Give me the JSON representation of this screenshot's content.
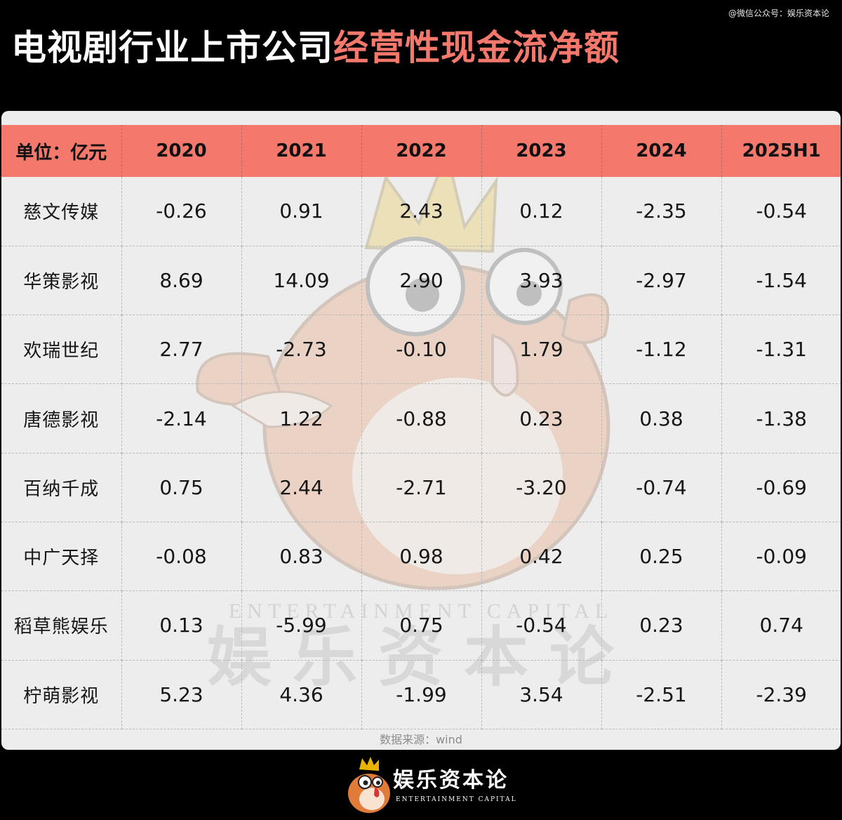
{
  "header": {
    "credit": "@微信公众号：娱乐资本论",
    "title_white": "电视剧行业上市公司",
    "title_red": "经营性现金流净额"
  },
  "chart_data": {
    "type": "table",
    "unit_label": "单位：亿元",
    "columns": [
      "2020",
      "2021",
      "2022",
      "2023",
      "2024",
      "2025H1"
    ],
    "rows": [
      {
        "name": "慈文传媒",
        "values": [
          "-0.26",
          "0.91",
          "2.43",
          "0.12",
          "-2.35",
          "-0.54"
        ]
      },
      {
        "name": "华策影视",
        "values": [
          "8.69",
          "14.09",
          "2.90",
          "3.93",
          "-2.97",
          "-1.54"
        ]
      },
      {
        "name": "欢瑞世纪",
        "values": [
          "2.77",
          "-2.73",
          "-0.10",
          "1.79",
          "-1.12",
          "-1.31"
        ]
      },
      {
        "name": "唐德影视",
        "values": [
          "-2.14",
          "1.22",
          "-0.88",
          "0.23",
          "0.38",
          "-1.38"
        ]
      },
      {
        "name": "百纳千成",
        "values": [
          "0.75",
          "2.44",
          "-2.71",
          "-3.20",
          "-0.74",
          "-0.69"
        ]
      },
      {
        "name": "中广天择",
        "values": [
          "-0.08",
          "0.83",
          "0.98",
          "0.42",
          "0.25",
          "-0.09"
        ]
      },
      {
        "name": "稻草熊娱乐",
        "values": [
          "0.13",
          "-5.99",
          "0.75",
          "-0.54",
          "0.23",
          "0.74"
        ]
      },
      {
        "name": "柠萌影视",
        "values": [
          "5.23",
          "4.36",
          "-1.99",
          "3.54",
          "-2.51",
          "-2.39"
        ]
      }
    ],
    "source": "数据来源：wind"
  },
  "watermark": {
    "en": "ENTERTAINMENT CAPITAL",
    "cn": "娱乐资本论"
  },
  "logo": {
    "cn": "娱乐资本论",
    "en": "ENTERTAINMENT CAPITAL"
  },
  "colors": {
    "background": "#000000",
    "accent": "#f4786c",
    "panel": "#ededed",
    "text": "#161616"
  }
}
